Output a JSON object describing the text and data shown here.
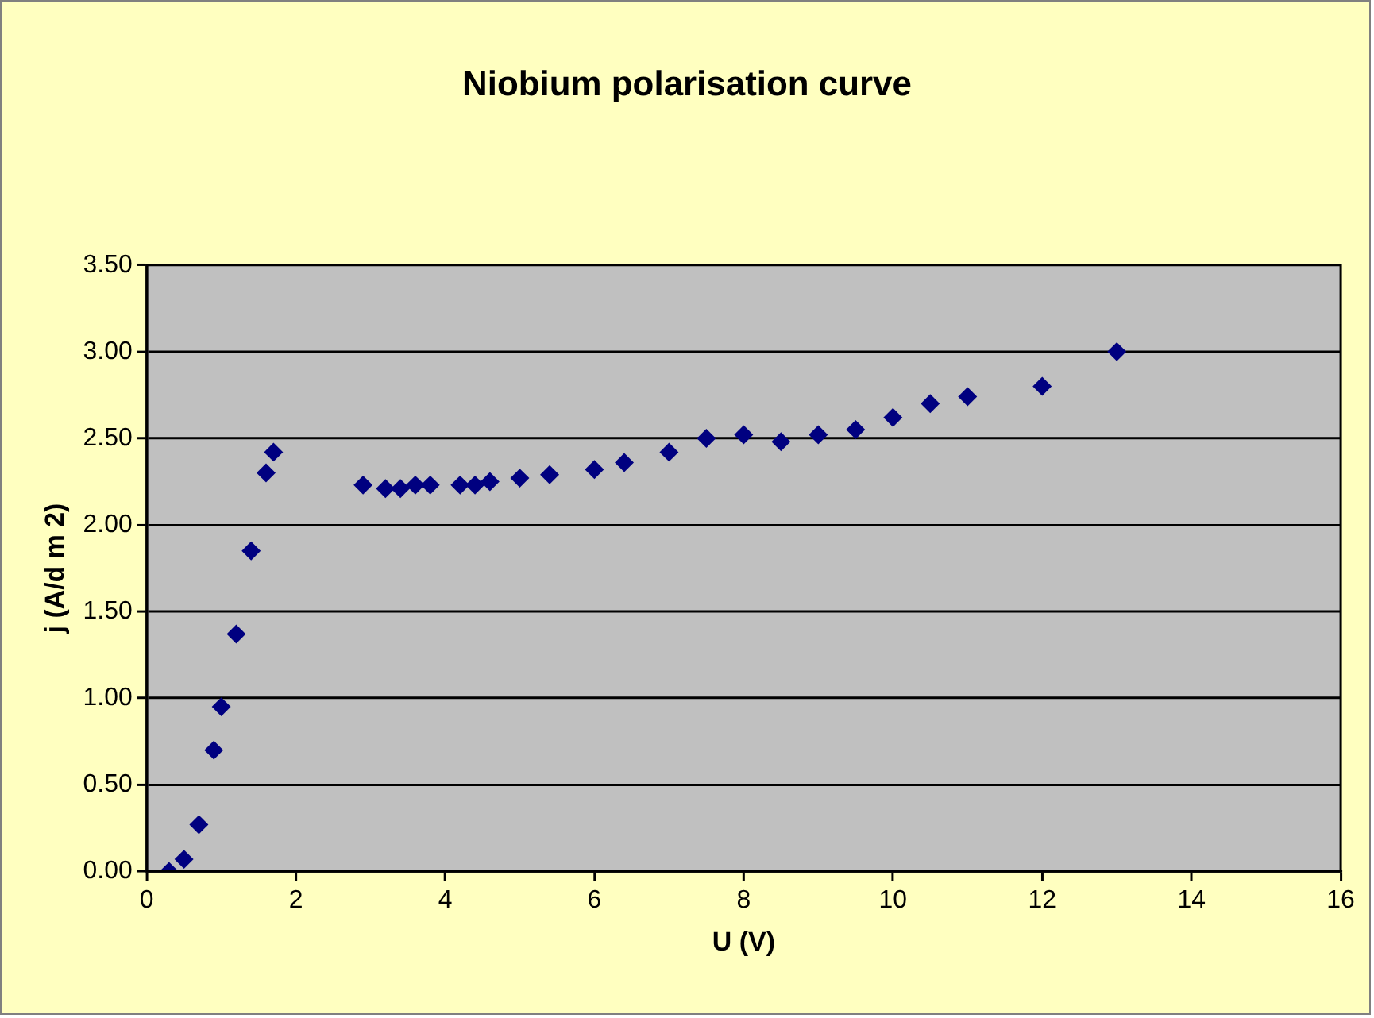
{
  "chart_data": {
    "type": "scatter",
    "title": "Niobium polarisation curve",
    "xlabel": "U (V)",
    "ylabel": "j (A/d m 2)",
    "x": [
      0.3,
      0.5,
      0.7,
      0.9,
      1.0,
      1.2,
      1.4,
      1.6,
      1.7,
      2.9,
      3.2,
      3.4,
      3.6,
      3.8,
      4.2,
      4.4,
      4.6,
      5.0,
      5.4,
      6.0,
      6.4,
      7.0,
      7.5,
      8.0,
      8.5,
      9.0,
      9.5,
      10.0,
      10.5,
      11.0,
      12.0,
      13.0
    ],
    "series": [
      {
        "color": "#000080",
        "values": [
          0,
          0.07,
          0.27,
          0.7,
          0.95,
          1.37,
          1.85,
          2.3,
          2.42,
          2.23,
          2.21,
          2.21,
          2.23,
          2.23,
          2.23,
          2.23,
          2.25,
          2.27,
          2.29,
          2.32,
          2.36,
          2.42,
          2.5,
          2.52,
          2.48,
          2.52,
          2.55,
          2.62,
          2.7,
          2.74,
          2.8,
          3.0
        ]
      }
    ],
    "xlim": [
      0,
      16
    ],
    "xticks": [
      0,
      2,
      4,
      6,
      8,
      10,
      12,
      14,
      16
    ],
    "ylim": [
      0,
      3.5
    ],
    "yticks": [
      {
        "value": 0,
        "label": "0.00"
      },
      {
        "value": 0.5,
        "label": "0.50"
      },
      {
        "value": 1,
        "label": "1.00"
      },
      {
        "value": 1.5,
        "label": "1.50"
      },
      {
        "value": 2,
        "label": "2.00"
      },
      {
        "value": 2.5,
        "label": "2.50"
      },
      {
        "value": 3,
        "label": "3.00"
      },
      {
        "value": 3.5,
        "label": "3.50"
      }
    ],
    "grid": "y",
    "legend": false,
    "marker": "diamond"
  }
}
